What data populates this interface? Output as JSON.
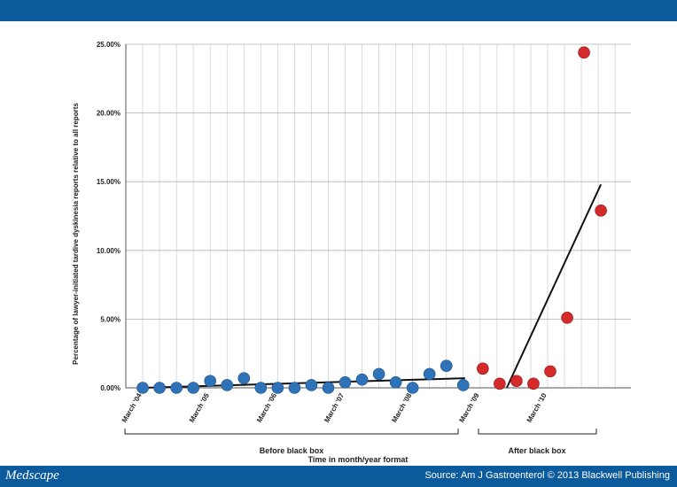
{
  "footer": {
    "logo": "Medscape",
    "source": "Source: Am J Gastroenterol © 2013 Blackwell Publishing"
  },
  "colors": {
    "header_bar": "#0a5a9c",
    "before_points": "#2e73b8",
    "after_points": "#d42a2a",
    "trend_line": "#111111",
    "grid": "#cccccc"
  },
  "chart_data": {
    "type": "scatter",
    "ylabel": "Percentage of lawyer-initiated tardive dyskinesia reports relative to all reports",
    "xlabel": "Time in month/year format",
    "ylim": [
      0,
      25
    ],
    "y_ticks": [
      "0.00%",
      "5.00%",
      "10.00%",
      "15.00%",
      "20.00%",
      "25.00%"
    ],
    "x_tick_labels": [
      "March '04",
      "March '05",
      "March '06",
      "March '07",
      "March '08",
      "March '09",
      "March '10"
    ],
    "grid": true,
    "groups": [
      {
        "label": "Before black box"
      },
      {
        "label": "After black box"
      }
    ],
    "series": [
      {
        "x": [
          "Mar '04",
          "Jul '04",
          "Nov '04",
          "Mar '05",
          "May '05",
          "Jul '05",
          "Sep '05",
          "Nov '05",
          "Jan '06",
          "Mar '06",
          "May '06",
          "Jul '06",
          "Sep '06",
          "Nov '06",
          "Jan '07",
          "Mar '07",
          "May '07",
          "Jul '07",
          "Sep '07",
          "Nov '07",
          "Jan '08",
          "Mar '08",
          "Jul '08",
          "Nov '08"
        ],
        "values": [
          0.0,
          0.0,
          0.0,
          0.0,
          0.5,
          0.2,
          0.7,
          0.0,
          0.0,
          0.0,
          0.2,
          0.0,
          0.4,
          0.6,
          1.0,
          0.4,
          0.0,
          1.0,
          1.6,
          0.2,
          null,
          null,
          null,
          null
        ]
      },
      {
        "values": [
          1.4,
          0.3,
          0.5,
          0.3,
          1.2,
          5.1,
          24.4,
          12.9
        ]
      }
    ],
    "trend_lines": [
      {
        "from": [
          0,
          0.0
        ],
        "to": [
          19,
          0.7
        ]
      },
      {
        "from": [
          1,
          0.0
        ],
        "to": [
          7,
          14.8
        ]
      }
    ]
  }
}
